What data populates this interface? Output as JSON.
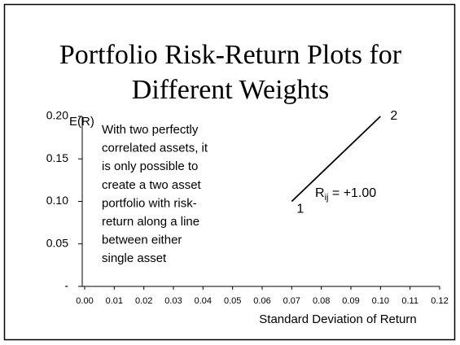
{
  "chart_data": {
    "type": "line",
    "title_lines": [
      "Portfolio Risk-Return Plots for",
      "Different Weights"
    ],
    "y_label": "E(R)",
    "x_label": "Standard Deviation of Return",
    "xlim": [
      0,
      0.12
    ],
    "ylim": [
      0,
      0.2
    ],
    "xticks": [
      {
        "value": 0,
        "label": "0.00"
      },
      {
        "value": 0.01,
        "label": "0.01"
      },
      {
        "value": 0.02,
        "label": "0.02"
      },
      {
        "value": 0.03,
        "label": "0.03"
      },
      {
        "value": 0.04,
        "label": "0.04"
      },
      {
        "value": 0.05,
        "label": "0.05"
      },
      {
        "value": 0.06,
        "label": "0.06"
      },
      {
        "value": 0.07,
        "label": "0.07"
      },
      {
        "value": 0.08,
        "label": "0.08"
      },
      {
        "value": 0.09,
        "label": "0.09"
      },
      {
        "value": 0.1,
        "label": "0.10"
      },
      {
        "value": 0.11,
        "label": "0.11"
      },
      {
        "value": 0.12,
        "label": "0.12"
      }
    ],
    "yticks": [
      {
        "value": 0,
        "label": "-"
      },
      {
        "value": 0.05,
        "label": "0.05"
      },
      {
        "value": 0.1,
        "label": "0.10"
      },
      {
        "value": 0.15,
        "label": "0.15"
      },
      {
        "value": 0.2,
        "label": "0.20"
      }
    ],
    "series": [
      {
        "color": "#000000",
        "x": [
          0.07,
          0.1
        ],
        "values": [
          0.1,
          0.2
        ],
        "point_labels": [
          "1",
          "2"
        ]
      }
    ],
    "correlation_label": {
      "base": "R",
      "sub": "ij",
      "suffix": " = +1.00"
    },
    "annotation_lines": [
      "With two perfectly",
      "correlated assets, it",
      "is only possible to",
      "create a two asset",
      "portfolio with risk-",
      "return along a line",
      "between either",
      "single asset"
    ]
  }
}
